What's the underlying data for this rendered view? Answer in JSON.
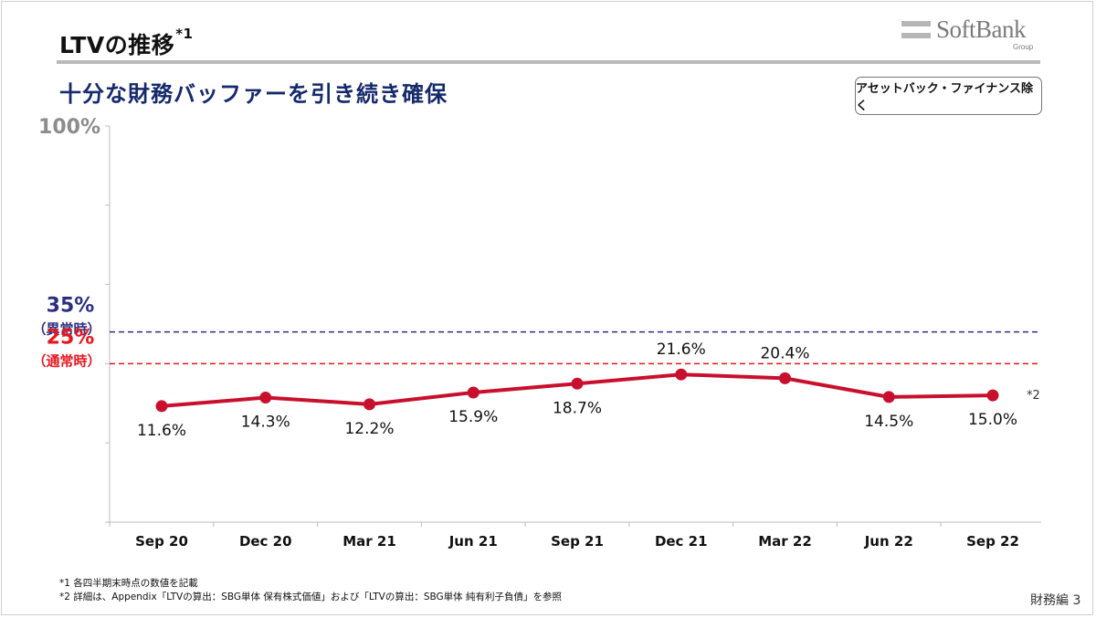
{
  "title": {
    "main": "LTVの推移",
    "sup": "*1"
  },
  "subtitle": "十分な財務バッファーを引き続き確保",
  "logo": {
    "name": "SoftBank",
    "group": "Group"
  },
  "note_box": "アセットバック・ファイナンス除く",
  "chart_data": {
    "type": "line",
    "categories": [
      "Sep 20",
      "Dec 20",
      "Mar 21",
      "Jun 21",
      "Sep 21",
      "Dec 21",
      "Mar 22",
      "Jun 22",
      "Sep 22"
    ],
    "values": [
      11.6,
      14.3,
      12.2,
      15.9,
      18.7,
      21.6,
      20.4,
      14.5,
      15.0
    ],
    "data_labels": [
      "11.6%",
      "14.3%",
      "12.2%",
      "15.9%",
      "18.7%",
      "21.6%",
      "20.4%",
      "14.5%",
      "15.0%"
    ],
    "ylim": [
      -25,
      100
    ],
    "y_top_label": "100%",
    "line_color": "#c8102e",
    "annotation": "*2",
    "thresholds": [
      {
        "value": 35,
        "label": "35%",
        "sub": "（異常時）",
        "color": "#2c2f7f"
      },
      {
        "value": 25,
        "label": "25%",
        "sub": "（通常時）",
        "color": "#e8151e"
      }
    ]
  },
  "footnotes": [
    "*1 各四半期末時点の数値を記載",
    "*2 詳細は、Appendix「LTVの算出：SBG単体 保有株式価値」および「LTVの算出：SBG単体 純有利子負債」を参照"
  ],
  "page_number": "財務編 3"
}
